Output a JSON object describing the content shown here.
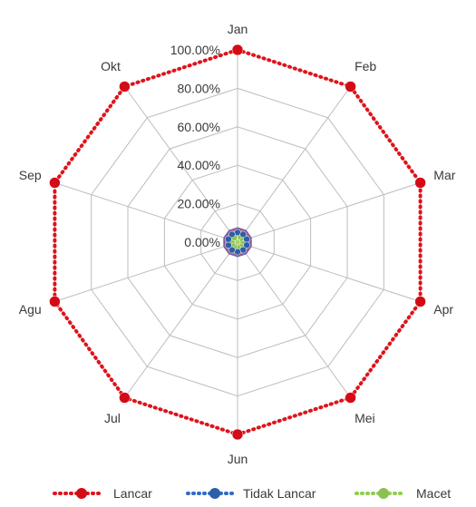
{
  "chart_data": {
    "type": "radar",
    "title": "",
    "categories": [
      "Jan",
      "Feb",
      "Mar",
      "Apr",
      "Mei",
      "Jun",
      "Jul",
      "Agu",
      "Sep",
      "Okt"
    ],
    "ticks": [
      "0.00%",
      "20.00%",
      "40.00%",
      "60.00%",
      "80.00%",
      "100.00%"
    ],
    "rlim": [
      0,
      100
    ],
    "grid": true,
    "legend_position": "bottom",
    "series": [
      {
        "name": "Lancar",
        "values": [
          100,
          100,
          100,
          100,
          100,
          100,
          100,
          100,
          100,
          100
        ],
        "color": "#e0121a",
        "marker_color": "#d40b16"
      },
      {
        "name": "Tidak Lancar",
        "values": [
          5,
          5,
          5,
          5,
          5,
          5,
          5,
          5,
          5,
          5
        ],
        "color": "#2f6bc7",
        "marker_color": "#2d5fa8"
      },
      {
        "name": "Macet",
        "values": [
          3,
          3,
          3,
          3,
          3,
          3,
          3,
          3,
          3,
          3
        ],
        "color": "#8fce4a",
        "marker_color": "#8cc152"
      }
    ]
  }
}
